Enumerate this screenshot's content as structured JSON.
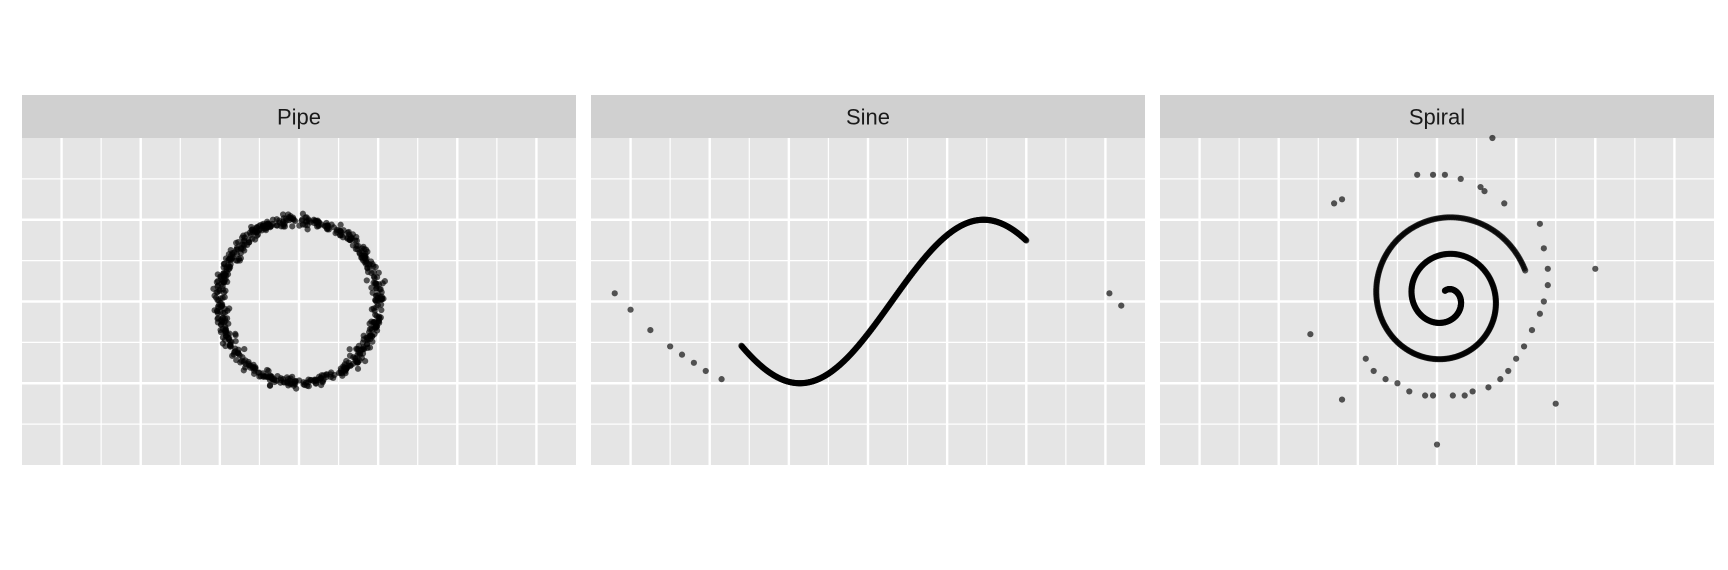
{
  "chart_data": {
    "type": "scatter",
    "layout": "facet-wrap-1x3",
    "x_range": [
      -3.5,
      3.5
    ],
    "y_range": [
      -2.0,
      2.0
    ],
    "axes_visible": false,
    "grid": true,
    "point_color": "#000000",
    "point_alpha": 0.65,
    "background_color": "#e5e5e5",
    "strip_color": "#d0d0d0",
    "panels": [
      {
        "title": "Pipe",
        "shape": "circle",
        "center": [
          0,
          0
        ],
        "radius": 1.0,
        "noise": 0.04,
        "n_points": 600
      },
      {
        "title": "Sine",
        "shape": "sine",
        "x_span": [
          -1.6,
          2.0
        ],
        "amplitude": 1.0,
        "n_points": 600,
        "outliers": [
          [
            -3.2,
            0.1
          ],
          [
            -3.0,
            -0.1
          ],
          [
            -2.75,
            -0.35
          ],
          [
            -2.5,
            -0.55
          ],
          [
            -2.35,
            -0.65
          ],
          [
            -2.2,
            -0.75
          ],
          [
            -2.05,
            -0.85
          ],
          [
            -1.85,
            -0.95
          ],
          [
            3.05,
            0.1
          ],
          [
            3.2,
            -0.05
          ]
        ]
      },
      {
        "title": "Spiral",
        "shape": "spiral",
        "center": [
          0.1,
          0.05
        ],
        "turns": 2.2,
        "r_max": 1.45,
        "n_points": 600,
        "outer_points": [
          [
            0.7,
            2.0
          ],
          [
            -0.25,
            1.55
          ],
          [
            -0.05,
            1.55
          ],
          [
            0.1,
            1.55
          ],
          [
            0.3,
            1.5
          ],
          [
            0.55,
            1.4
          ],
          [
            0.6,
            1.35
          ],
          [
            0.85,
            1.2
          ],
          [
            -1.2,
            1.25
          ],
          [
            -1.3,
            1.2
          ],
          [
            1.3,
            0.95
          ],
          [
            1.35,
            0.65
          ],
          [
            1.4,
            0.4
          ],
          [
            1.4,
            0.2
          ],
          [
            1.35,
            0.0
          ],
          [
            1.3,
            -0.15
          ],
          [
            1.2,
            -0.35
          ],
          [
            1.1,
            -0.55
          ],
          [
            1.0,
            -0.7
          ],
          [
            0.9,
            -0.85
          ],
          [
            0.8,
            -0.95
          ],
          [
            0.65,
            -1.05
          ],
          [
            0.45,
            -1.1
          ],
          [
            0.35,
            -1.15
          ],
          [
            0.2,
            -1.15
          ],
          [
            -0.05,
            -1.15
          ],
          [
            -0.15,
            -1.15
          ],
          [
            -0.35,
            -1.1
          ],
          [
            -0.5,
            -1.0
          ],
          [
            -0.65,
            -0.95
          ],
          [
            -0.8,
            -0.85
          ],
          [
            -0.9,
            -0.7
          ],
          [
            2.0,
            0.4
          ],
          [
            -1.6,
            -0.4
          ],
          [
            -1.2,
            -1.2
          ],
          [
            1.5,
            -1.25
          ],
          [
            0.0,
            -1.75
          ]
        ]
      }
    ]
  }
}
